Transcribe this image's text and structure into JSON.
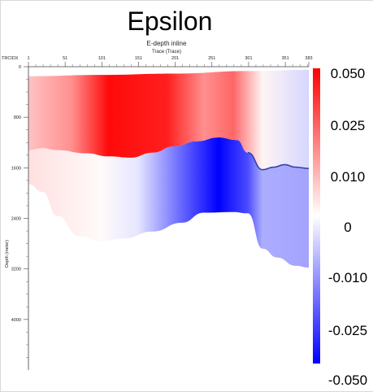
{
  "chart_data": {
    "type": "heatmap",
    "title": "Epsilon",
    "subtitle": "E-depth inline",
    "xlabel": "Trace (Trace)",
    "ylabel": "Depth (meter)",
    "corner_label": "TRCIDX",
    "x_ticks": [
      "1",
      "51",
      "101",
      "151",
      "201",
      "251",
      "301",
      "351",
      "383"
    ],
    "y_ticks": [
      "0",
      "800",
      "1600",
      "2400",
      "3200",
      "4000"
    ],
    "xlim": [
      1,
      383
    ],
    "ylim": [
      0,
      4800
    ],
    "colorbar": {
      "ticks": [
        "0.050",
        "0.025",
        "0.010",
        "0",
        "-0.010",
        "-0.025",
        "-0.050"
      ],
      "range": [
        -0.05,
        0.05
      ],
      "colors": {
        "positive": "#ff0000",
        "zero": "#ffffff",
        "negative": "#0000ff"
      }
    },
    "upper_layer": {
      "top_depth": [
        {
          "trace": 1,
          "depth": 150
        },
        {
          "trace": 100,
          "depth": 130
        },
        {
          "trace": 200,
          "depth": 110
        },
        {
          "trace": 300,
          "depth": 70
        },
        {
          "trace": 383,
          "depth": 50
        }
      ],
      "base_depth": [
        {
          "trace": 1,
          "depth": 1320
        },
        {
          "trace": 20,
          "depth": 1290
        },
        {
          "trace": 40,
          "depth": 1320
        },
        {
          "trace": 80,
          "depth": 1370
        },
        {
          "trace": 110,
          "depth": 1420
        },
        {
          "trace": 140,
          "depth": 1440
        },
        {
          "trace": 170,
          "depth": 1360
        },
        {
          "trace": 200,
          "depth": 1260
        },
        {
          "trace": 230,
          "depth": 1180
        },
        {
          "trace": 260,
          "depth": 1120
        },
        {
          "trace": 285,
          "depth": 1160
        },
        {
          "trace": 300,
          "depth": 1360
        },
        {
          "trace": 320,
          "depth": 1630
        },
        {
          "trace": 335,
          "depth": 1590
        },
        {
          "trace": 350,
          "depth": 1550
        },
        {
          "trace": 365,
          "depth": 1590
        },
        {
          "trace": 383,
          "depth": 1610
        }
      ],
      "epsilon": [
        {
          "trace": 1,
          "value": 0.012
        },
        {
          "trace": 60,
          "value": 0.022
        },
        {
          "trace": 110,
          "value": 0.048
        },
        {
          "trace": 190,
          "value": 0.044
        },
        {
          "trace": 240,
          "value": 0.022
        },
        {
          "trace": 280,
          "value": 0.03
        },
        {
          "trace": 320,
          "value": 0.002
        },
        {
          "trace": 383,
          "value": -0.008
        }
      ]
    },
    "lower_layer": {
      "base_depth": [
        {
          "trace": 1,
          "depth": 1860
        },
        {
          "trace": 20,
          "depth": 1980
        },
        {
          "trace": 40,
          "depth": 2360
        },
        {
          "trace": 70,
          "depth": 2680
        },
        {
          "trace": 100,
          "depth": 2760
        },
        {
          "trace": 130,
          "depth": 2720
        },
        {
          "trace": 170,
          "depth": 2610
        },
        {
          "trace": 210,
          "depth": 2470
        },
        {
          "trace": 240,
          "depth": 2310
        },
        {
          "trace": 280,
          "depth": 2300
        },
        {
          "trace": 300,
          "depth": 2320
        },
        {
          "trace": 320,
          "depth": 2880
        },
        {
          "trace": 340,
          "depth": 3020
        },
        {
          "trace": 365,
          "depth": 3150
        },
        {
          "trace": 383,
          "depth": 3180
        }
      ],
      "epsilon": [
        {
          "trace": 1,
          "value": 0.006
        },
        {
          "trace": 100,
          "value": 0.001
        },
        {
          "trace": 150,
          "value": -0.005
        },
        {
          "trace": 210,
          "value": -0.03
        },
        {
          "trace": 260,
          "value": -0.05
        },
        {
          "trace": 300,
          "value": -0.035
        },
        {
          "trace": 320,
          "value": -0.016
        },
        {
          "trace": 383,
          "value": -0.018
        }
      ]
    }
  }
}
